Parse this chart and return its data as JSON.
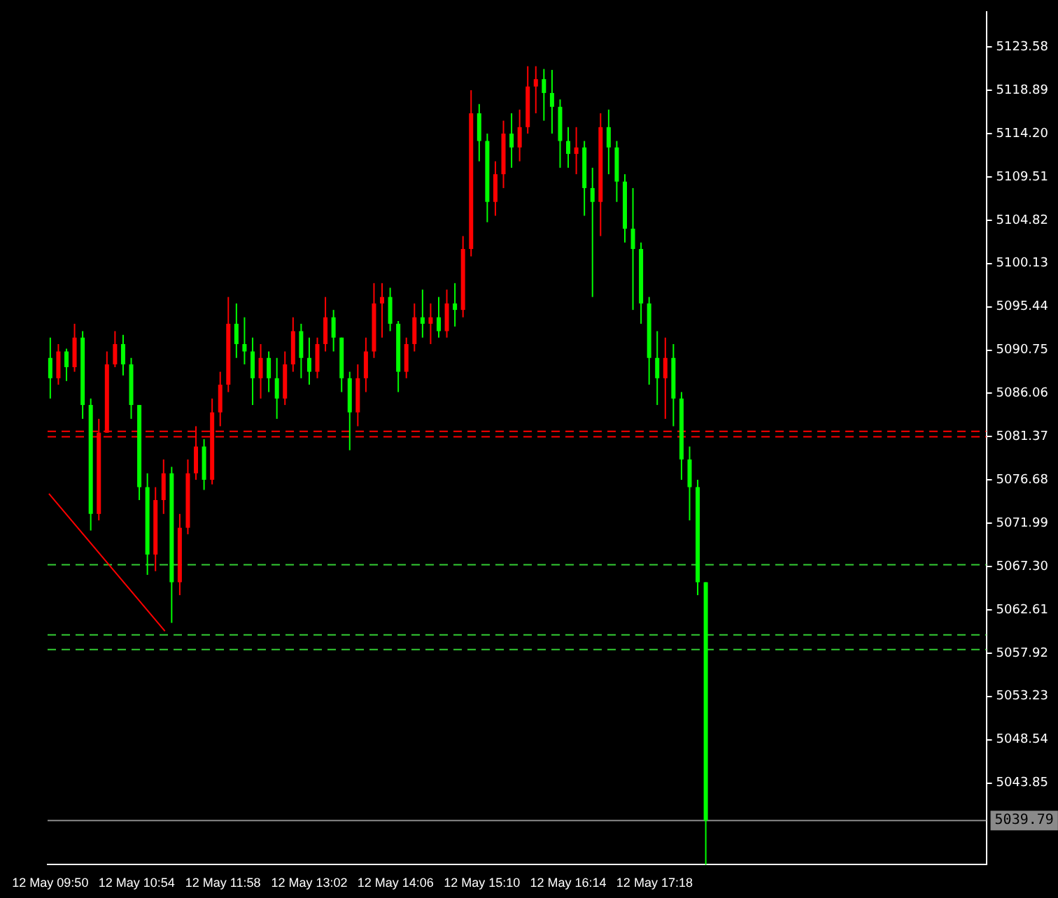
{
  "chart_data": {
    "type": "candlestick",
    "x": [
      "--05-12T09:50",
      "--05-12T09:56",
      "--05-12T10:02",
      "--05-12T10:08",
      "--05-12T10:14",
      "--05-12T10:20",
      "--05-12T10:26",
      "--05-12T10:32",
      "--05-12T10:38",
      "--05-12T10:44",
      "--05-12T10:50",
      "--05-12T10:56",
      "--05-12T11:02",
      "--05-12T11:08",
      "--05-12T11:14",
      "--05-12T11:20",
      "--05-12T11:26",
      "--05-12T11:32",
      "--05-12T11:38",
      "--05-12T11:44",
      "--05-12T11:50",
      "--05-12T11:56",
      "--05-12T12:02",
      "--05-12T12:08",
      "--05-12T12:14",
      "--05-12T12:20",
      "--05-12T12:26",
      "--05-12T12:32",
      "--05-12T12:38",
      "--05-12T12:44",
      "--05-12T12:50",
      "--05-12T12:56",
      "--05-12T13:02",
      "--05-12T13:08",
      "--05-12T13:14",
      "--05-12T13:20",
      "--05-12T13:26",
      "--05-12T13:32",
      "--05-12T13:38",
      "--05-12T13:44",
      "--05-12T13:50",
      "--05-12T13:56",
      "--05-12T14:02",
      "--05-12T14:08",
      "--05-12T14:14",
      "--05-12T14:20",
      "--05-12T14:26",
      "--05-12T14:32",
      "--05-12T14:38",
      "--05-12T14:44",
      "--05-12T14:50",
      "--05-12T14:56",
      "--05-12T15:02",
      "--05-12T15:08",
      "--05-12T15:14",
      "--05-12T15:20",
      "--05-12T15:26",
      "--05-12T15:32",
      "--05-12T15:38",
      "--05-12T15:44",
      "--05-12T15:50",
      "--05-12T15:56",
      "--05-12T16:02",
      "--05-12T16:08",
      "--05-12T16:14",
      "--05-12T16:20",
      "--05-12T16:26",
      "--05-12T16:32",
      "--05-12T16:38",
      "--05-12T16:44",
      "--05-12T16:50",
      "--05-12T16:56",
      "--05-12T17:02",
      "--05-12T17:08",
      "--05-12T17:14",
      "--05-12T17:20",
      "--05-12T17:26",
      "--05-12T17:32",
      "--05-12T17:38",
      "--05-12T17:44",
      "--05-12T17:50",
      "--05-12T17:56"
    ],
    "ohlc": [
      [
        5089.9,
        5092.1,
        5085.5,
        5087.7
      ],
      [
        5087.7,
        5091.4,
        5087.0,
        5090.6
      ],
      [
        5090.6,
        5090.9,
        5087.4,
        5088.9
      ],
      [
        5088.9,
        5093.6,
        5088.4,
        5092.1
      ],
      [
        5092.1,
        5092.8,
        5083.3,
        5084.8
      ],
      [
        5084.8,
        5085.5,
        5071.2,
        5073.0
      ],
      [
        5073.0,
        5083.3,
        5072.3,
        5081.8
      ],
      [
        5081.8,
        5090.6,
        5081.8,
        5089.2
      ],
      [
        5089.2,
        5092.8,
        5088.9,
        5091.4
      ],
      [
        5091.4,
        5092.4,
        5088.0,
        5089.2
      ],
      [
        5089.2,
        5089.9,
        5083.3,
        5084.8
      ],
      [
        5084.8,
        5084.8,
        5074.5,
        5075.9
      ],
      [
        5075.9,
        5077.4,
        5066.4,
        5068.6
      ],
      [
        5068.6,
        5075.9,
        5066.8,
        5074.5
      ],
      [
        5074.5,
        5078.9,
        5073.0,
        5077.4
      ],
      [
        5077.4,
        5078.1,
        5061.2,
        5065.6
      ],
      [
        5065.6,
        5073.0,
        5064.2,
        5071.5
      ],
      [
        5071.5,
        5078.9,
        5070.8,
        5077.4
      ],
      [
        5077.4,
        5082.5,
        5076.7,
        5080.3
      ],
      [
        5080.3,
        5081.1,
        5075.6,
        5076.7
      ],
      [
        5076.7,
        5085.5,
        5076.2,
        5084.0
      ],
      [
        5084.0,
        5088.4,
        5082.5,
        5087.0
      ],
      [
        5087.0,
        5096.5,
        5086.2,
        5093.6
      ],
      [
        5093.6,
        5095.8,
        5089.9,
        5091.4
      ],
      [
        5091.4,
        5094.3,
        5089.2,
        5090.6
      ],
      [
        5090.6,
        5092.1,
        5084.8,
        5087.7
      ],
      [
        5087.7,
        5091.4,
        5085.5,
        5089.9
      ],
      [
        5089.9,
        5090.6,
        5086.2,
        5087.7
      ],
      [
        5087.7,
        5089.9,
        5083.3,
        5085.5
      ],
      [
        5085.5,
        5090.6,
        5084.8,
        5089.2
      ],
      [
        5089.2,
        5094.3,
        5088.4,
        5092.8
      ],
      [
        5092.8,
        5093.6,
        5087.7,
        5089.9
      ],
      [
        5089.9,
        5092.1,
        5087.0,
        5088.4
      ],
      [
        5088.4,
        5092.1,
        5087.7,
        5091.4
      ],
      [
        5091.4,
        5096.5,
        5090.6,
        5094.3
      ],
      [
        5094.3,
        5095.1,
        5090.6,
        5092.1
      ],
      [
        5092.1,
        5092.1,
        5086.2,
        5087.7
      ],
      [
        5087.7,
        5088.4,
        5079.9,
        5084.0
      ],
      [
        5084.0,
        5089.2,
        5082.5,
        5087.7
      ],
      [
        5087.7,
        5092.1,
        5086.2,
        5090.6
      ],
      [
        5090.6,
        5098.0,
        5089.9,
        5095.8
      ],
      [
        5095.8,
        5098.0,
        5092.1,
        5096.5
      ],
      [
        5096.5,
        5097.5,
        5092.8,
        5093.6
      ],
      [
        5093.6,
        5093.9,
        5086.2,
        5088.4
      ],
      [
        5088.4,
        5092.1,
        5087.7,
        5091.4
      ],
      [
        5091.4,
        5095.8,
        5090.6,
        5094.3
      ],
      [
        5094.3,
        5097.3,
        5092.1,
        5093.6
      ],
      [
        5093.6,
        5095.8,
        5091.4,
        5094.3
      ],
      [
        5094.3,
        5096.5,
        5092.1,
        5092.8
      ],
      [
        5092.8,
        5097.3,
        5092.1,
        5095.8
      ],
      [
        5095.8,
        5098.0,
        5093.3,
        5095.1
      ],
      [
        5095.1,
        5103.1,
        5094.3,
        5101.7
      ],
      [
        5101.7,
        5118.9,
        5100.9,
        5116.4
      ],
      [
        5116.4,
        5117.4,
        5111.2,
        5113.4
      ],
      [
        5113.4,
        5114.2,
        5104.6,
        5106.8
      ],
      [
        5106.8,
        5111.2,
        5105.3,
        5109.8
      ],
      [
        5109.8,
        5115.6,
        5108.3,
        5114.2
      ],
      [
        5114.2,
        5116.4,
        5110.5,
        5112.7
      ],
      [
        5112.7,
        5116.8,
        5111.2,
        5114.9
      ],
      [
        5114.9,
        5121.5,
        5114.2,
        5119.3
      ],
      [
        5119.3,
        5121.5,
        5116.4,
        5120.1
      ],
      [
        5120.1,
        5121.2,
        5115.6,
        5118.6
      ],
      [
        5118.6,
        5121.1,
        5114.2,
        5117.1
      ],
      [
        5117.1,
        5117.9,
        5110.5,
        5113.4
      ],
      [
        5113.4,
        5114.9,
        5110.5,
        5112.0
      ],
      [
        5112.0,
        5114.9,
        5109.8,
        5112.7
      ],
      [
        5112.7,
        5113.4,
        5105.3,
        5108.3
      ],
      [
        5108.3,
        5110.5,
        5096.5,
        5106.8
      ],
      [
        5106.8,
        5116.4,
        5103.1,
        5114.9
      ],
      [
        5114.9,
        5116.8,
        5109.8,
        5112.7
      ],
      [
        5112.7,
        5113.4,
        5106.8,
        5109.0
      ],
      [
        5109.0,
        5109.8,
        5102.4,
        5103.9
      ],
      [
        5103.9,
        5108.3,
        5095.1,
        5101.7
      ],
      [
        5101.7,
        5102.4,
        5093.6,
        5095.8
      ],
      [
        5095.8,
        5096.5,
        5087.0,
        5089.9
      ],
      [
        5089.9,
        5092.8,
        5084.8,
        5087.7
      ],
      [
        5087.7,
        5092.1,
        5083.3,
        5089.9
      ],
      [
        5089.9,
        5091.4,
        5082.5,
        5085.5
      ],
      [
        5085.5,
        5086.2,
        5076.7,
        5078.9
      ],
      [
        5078.9,
        5080.3,
        5072.3,
        5075.9
      ],
      [
        5075.9,
        5076.7,
        5064.2,
        5065.6
      ],
      [
        5065.6,
        5065.6,
        5035.0,
        5039.79
      ]
    ],
    "colors": [
      "#00ff00",
      "#ff0000",
      "#00ff00",
      "#ff0000",
      "#00ff00",
      "#00ff00",
      "#ff0000",
      "#ff0000",
      "#ff0000",
      "#00ff00",
      "#00ff00",
      "#00ff00",
      "#00ff00",
      "#ff0000",
      "#ff0000",
      "#00ff00",
      "#ff0000",
      "#ff0000",
      "#ff0000",
      "#00ff00",
      "#ff0000",
      "#ff0000",
      "#ff0000",
      "#00ff00",
      "#00ff00",
      "#00ff00",
      "#ff0000",
      "#00ff00",
      "#00ff00",
      "#ff0000",
      "#ff0000",
      "#00ff00",
      "#00ff00",
      "#ff0000",
      "#ff0000",
      "#00ff00",
      "#00ff00",
      "#00ff00",
      "#ff0000",
      "#ff0000",
      "#ff0000",
      "#ff0000",
      "#00ff00",
      "#00ff00",
      "#ff0000",
      "#ff0000",
      "#00ff00",
      "#ff0000",
      "#00ff00",
      "#ff0000",
      "#00ff00",
      "#ff0000",
      "#ff0000",
      "#00ff00",
      "#00ff00",
      "#ff0000",
      "#ff0000",
      "#00ff00",
      "#ff0000",
      "#ff0000",
      "#ff0000",
      "#00ff00",
      "#00ff00",
      "#00ff00",
      "#00ff00",
      "#ff0000",
      "#00ff00",
      "#00ff00",
      "#ff0000",
      "#00ff00",
      "#00ff00",
      "#00ff00",
      "#00ff00",
      "#00ff00",
      "#00ff00",
      "#00ff00",
      "#ff0000",
      "#00ff00",
      "#00ff00",
      "#00ff00",
      "#00ff00",
      "#00ff00"
    ],
    "series": [
      {
        "type": "line",
        "color": "#ff0000",
        "x": [
          "--05-12T09:49",
          "--05-12T11:15"
        ],
        "values": [
          5075.2,
          5060.3
        ]
      }
    ],
    "xlim": [
      "--05-12T09:48",
      "--05-12T21:24"
    ],
    "xticks": [
      {
        "value": "--05-12T09:50",
        "label": "12 May 09:50"
      },
      {
        "value": "--05-12T10:54",
        "label": "12 May 10:54"
      },
      {
        "value": "--05-12T11:58",
        "label": "12 May 11:58"
      },
      {
        "value": "--05-12T13:02",
        "label": "12 May 13:02"
      },
      {
        "value": "--05-12T14:06",
        "label": "12 May 14:06"
      },
      {
        "value": "--05-12T15:10",
        "label": "12 May 15:10"
      },
      {
        "value": "--05-12T16:14",
        "label": "12 May 16:14"
      },
      {
        "value": "--05-12T17:18",
        "label": "12 May 17:18"
      }
    ],
    "ylim": [
      5035.0,
      5127.4
    ],
    "yticks": [
      5043.85,
      5048.54,
      5053.23,
      5057.92,
      5062.61,
      {
        "value": 5067.3,
        "label": "5067.30"
      },
      5071.99,
      5076.68,
      5081.37,
      5086.06,
      5090.75,
      5095.44,
      {
        "value": 5100.13,
        "label": "5100.13"
      },
      5104.82,
      5109.51,
      {
        "value": 5114.2,
        "label": "5114.20"
      },
      5118.89,
      5123.58
    ],
    "ref_lines": [
      {
        "axis": "y",
        "value": 5081.95,
        "color": "#ff0000",
        "line_style": "dashed"
      },
      {
        "axis": "y",
        "value": 5081.36,
        "color": "#ff0000",
        "line_style": "dashed"
      },
      {
        "axis": "y",
        "value": 5067.5,
        "color": "#33cc33",
        "line_style": "dashed"
      },
      {
        "axis": "y",
        "value": 5059.9,
        "color": "#33cc33",
        "line_style": "dashed"
      },
      {
        "axis": "y",
        "value": 5058.3,
        "color": "#33cc33",
        "line_style": "dashed"
      },
      {
        "axis": "y",
        "value": 5039.79,
        "label": "5039.79",
        "color": "#8a8a8a",
        "line_style": "solid"
      }
    ],
    "grid": false,
    "legend": false
  }
}
